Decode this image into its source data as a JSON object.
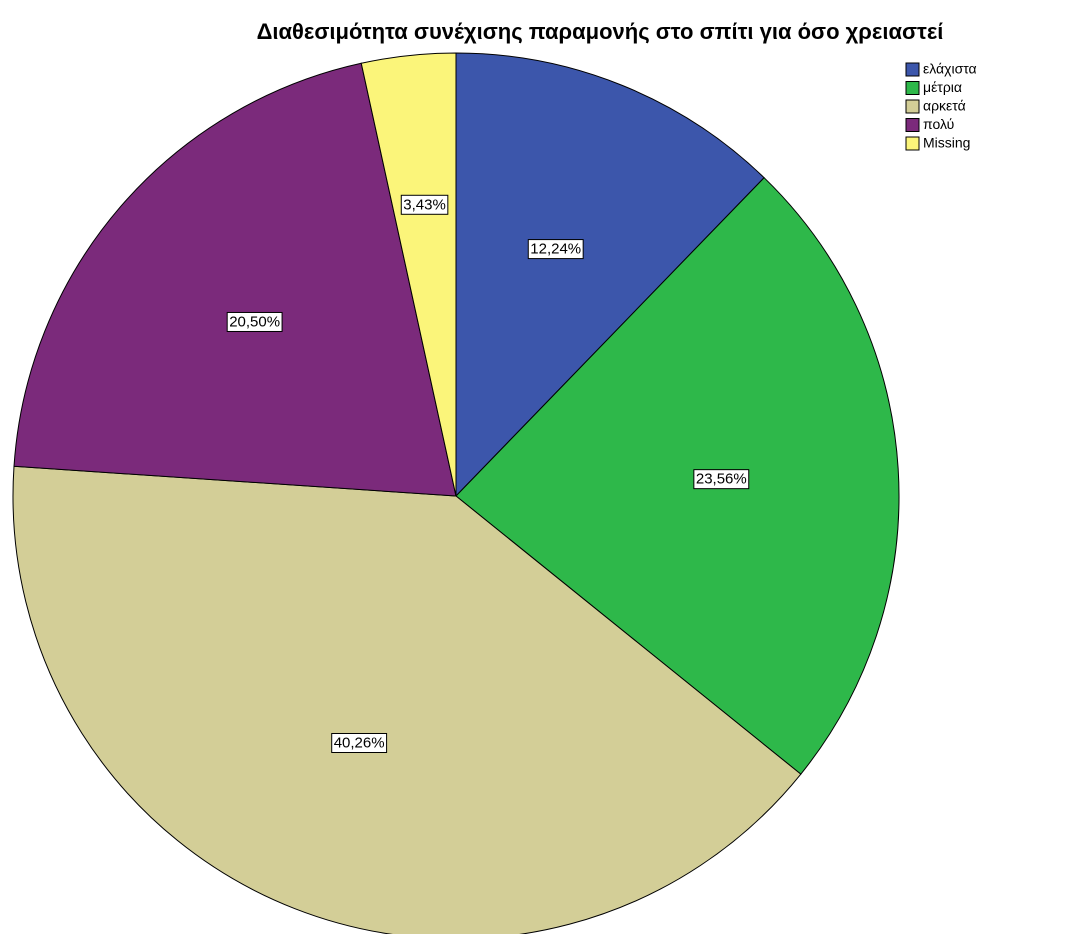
{
  "chart_data": {
    "type": "pie",
    "title": "Διαθεσιμότητα συνέχισης παραμονής στο σπίτι για όσο χρειαστεί",
    "categories": [
      "ελάχιστα",
      "μέτρια",
      "αρκετά",
      "πολύ",
      "Missing"
    ],
    "values": [
      12.24,
      23.56,
      40.26,
      20.5,
      3.43
    ],
    "value_labels": [
      "12,24%",
      "23,56%",
      "40,26%",
      "20,50%",
      "3,43%"
    ],
    "colors": [
      "#3c56ab",
      "#2eb84a",
      "#d3ce97",
      "#7b2a7b",
      "#fbf57a"
    ],
    "legend": "top-right"
  }
}
